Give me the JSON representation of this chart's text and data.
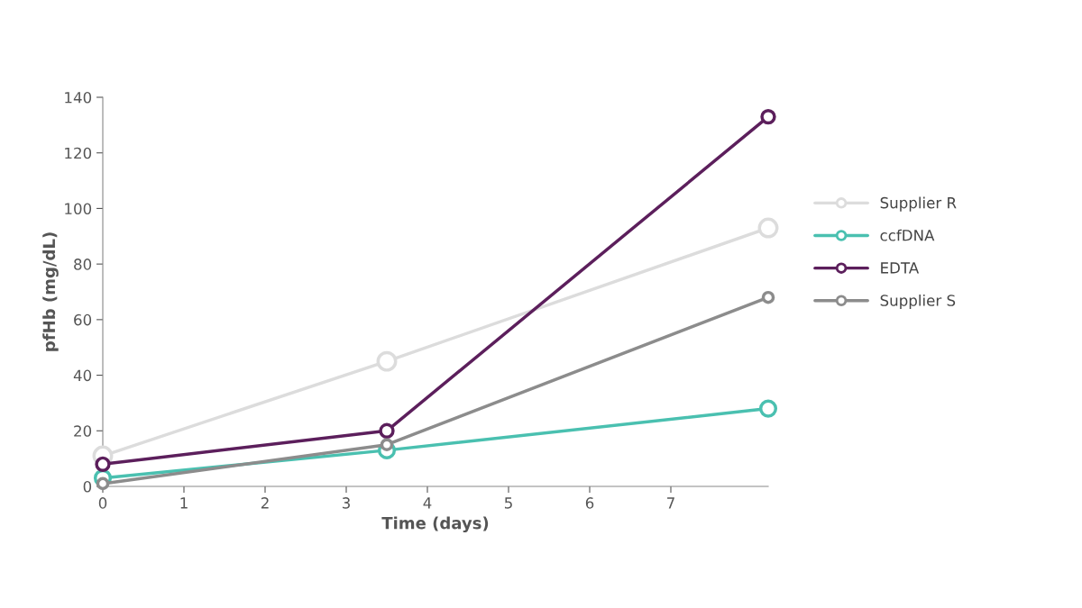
{
  "chart_data": {
    "type": "line",
    "xlabel": "Time (days)",
    "ylabel": "pfHb (mg/dL)",
    "xlim": [
      0,
      8.2
    ],
    "xticks": [
      0,
      1,
      2,
      3,
      4,
      5,
      6,
      7
    ],
    "ylim": [
      0,
      140
    ],
    "yticks": [
      0,
      20,
      40,
      60,
      80,
      100,
      120,
      140
    ],
    "x": [
      0,
      3.5,
      8.2
    ],
    "series": [
      {
        "name": "Supplier R",
        "color": "#dcdcdc",
        "values": [
          11,
          45,
          93
        ]
      },
      {
        "name": "ccfDNA",
        "color": "#4ac0b0",
        "values": [
          3,
          13,
          28
        ]
      },
      {
        "name": "EDTA",
        "color": "#5c1f5c",
        "values": [
          8,
          20,
          133
        ]
      },
      {
        "name": "Supplier S",
        "color": "#8c8c8c",
        "values": [
          1,
          15,
          68
        ]
      }
    ],
    "marker": "circle",
    "legend": "right",
    "grid": false
  }
}
